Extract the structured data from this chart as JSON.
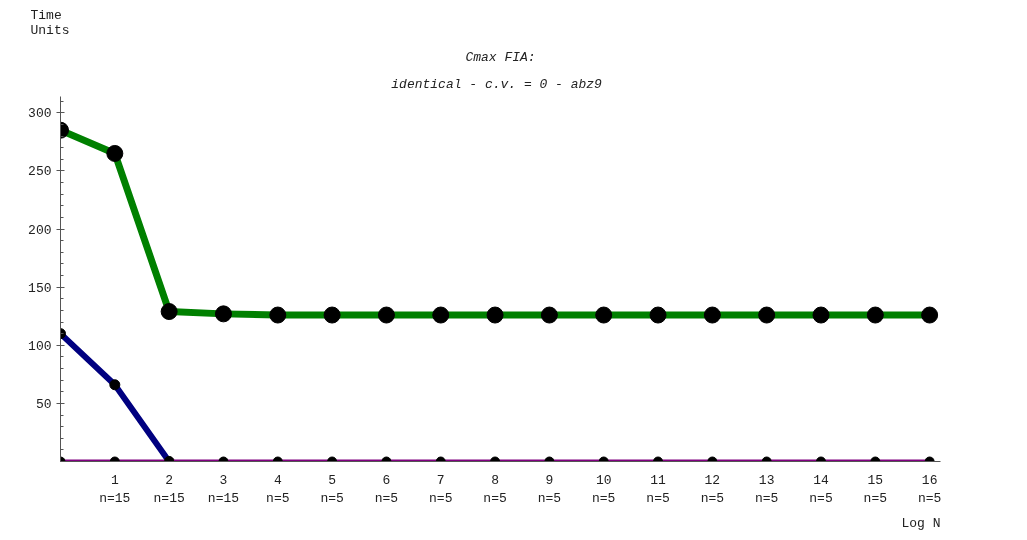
{
  "chart_data": {
    "type": "line",
    "title": "Cmax FIA:",
    "subtitle": "identical - c.v. = 0  - abz9",
    "xlabel": "Log N",
    "ylabel": "Time\nUnits",
    "categories": [
      null,
      "1\nn=15",
      "2\nn=15",
      "3\nn=15",
      "4\nn=5",
      "5\nn=5",
      "6\nn=5",
      "7\nn=5",
      "8\nn=5",
      "9\nn=5",
      "10\nn=5",
      "11\nn=5",
      "12\nn=5",
      "13\nn=5",
      "14\nn=5",
      "15\nn=5",
      "16\nn=5"
    ],
    "series": [
      {
        "color": "#008000",
        "values": [
          285,
          265,
          129,
          127,
          126,
          126,
          126,
          126,
          126,
          126,
          126,
          126,
          126,
          126,
          126,
          126,
          126
        ]
      },
      {
        "color": "#000080",
        "values": [
          110,
          66,
          0,
          null,
          null,
          null,
          null,
          null,
          null,
          null,
          null,
          null,
          null,
          null,
          null,
          null,
          null
        ]
      },
      {
        "color": "#800080",
        "values": [
          0,
          0,
          0,
          0,
          0,
          0,
          0,
          0,
          0,
          0,
          0,
          0,
          0,
          0,
          0,
          0,
          0
        ]
      }
    ],
    "marker": "circle",
    "line_style": "solid",
    "ylim": [
      0,
      314
    ],
    "yticks": [
      50,
      100,
      150,
      200,
      250,
      300
    ]
  }
}
